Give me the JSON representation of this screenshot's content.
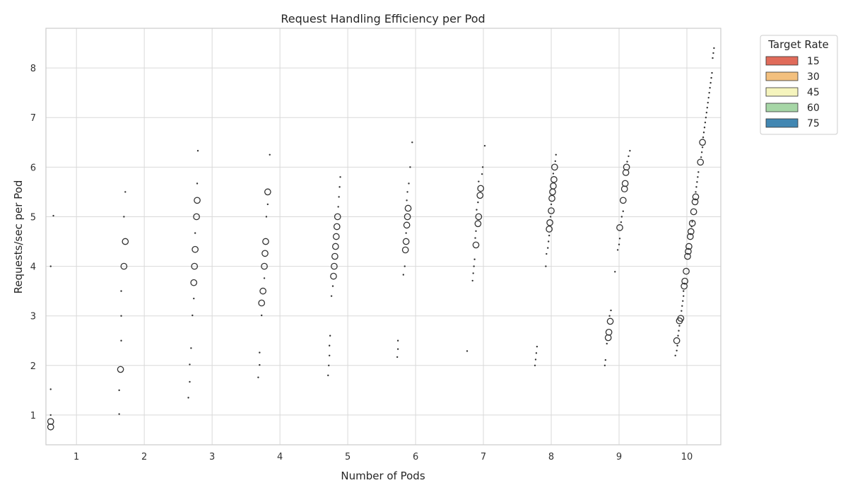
{
  "chart_data": {
    "type": "violin",
    "title": "Request Handling Efficiency per Pod",
    "xlabel": "Number of Pods",
    "ylabel": "Requests/sec per Pod",
    "x_ticks": [
      1,
      2,
      3,
      4,
      5,
      6,
      7,
      8,
      9,
      10
    ],
    "xlim": [
      0.55,
      10.5
    ],
    "y_ticks": [
      1,
      2,
      3,
      4,
      5,
      6,
      7,
      8
    ],
    "ylim": [
      0.4,
      8.8
    ],
    "grid": true,
    "legend": {
      "title": "Target Rate",
      "placement": "outside-top-right",
      "entries": [
        {
          "label": "15",
          "color": "#e06b5a"
        },
        {
          "label": "30",
          "color": "#f3c07e"
        },
        {
          "label": "45",
          "color": "#f5f4bd"
        },
        {
          "label": "60",
          "color": "#a6d6a6"
        },
        {
          "label": "75",
          "color": "#4287b2"
        }
      ]
    },
    "groups": [
      {
        "pods": 1,
        "dots": [
          [
            0.62,
            1.52
          ],
          [
            0.62,
            1.0
          ],
          [
            0.62,
            4.0
          ],
          [
            0.66,
            5.02
          ]
        ],
        "circles": [
          [
            0.62,
            0.87
          ],
          [
            0.62,
            0.76
          ]
        ]
      },
      {
        "pods": 2,
        "dots": [
          [
            1.63,
            1.5
          ],
          [
            1.63,
            1.02
          ],
          [
            1.66,
            2.5
          ],
          [
            1.66,
            3.0
          ],
          [
            1.66,
            3.5
          ],
          [
            1.7,
            5.0
          ],
          [
            1.72,
            5.5
          ]
        ],
        "circles": [
          [
            1.65,
            1.92
          ],
          [
            1.7,
            4.0
          ],
          [
            1.72,
            4.5
          ]
        ]
      },
      {
        "pods": 3,
        "dots": [
          [
            2.65,
            1.35
          ],
          [
            2.67,
            1.67
          ],
          [
            2.67,
            2.02
          ],
          [
            2.69,
            2.35
          ],
          [
            2.71,
            3.01
          ],
          [
            2.73,
            3.35
          ],
          [
            2.75,
            4.67
          ],
          [
            2.78,
            5.67
          ],
          [
            2.79,
            6.33
          ]
        ],
        "circles": [
          [
            2.73,
            3.67
          ],
          [
            2.74,
            4.0
          ],
          [
            2.75,
            4.34
          ],
          [
            2.77,
            5.0
          ],
          [
            2.78,
            5.33
          ]
        ]
      },
      {
        "pods": 4,
        "dots": [
          [
            3.68,
            1.76
          ],
          [
            3.7,
            2.01
          ],
          [
            3.7,
            2.26
          ],
          [
            3.73,
            3.01
          ],
          [
            3.77,
            3.76
          ],
          [
            3.8,
            5.0
          ],
          [
            3.82,
            5.25
          ],
          [
            3.85,
            6.25
          ]
        ],
        "circles": [
          [
            3.73,
            3.26
          ],
          [
            3.75,
            3.5
          ],
          [
            3.77,
            4.0
          ],
          [
            3.78,
            4.26
          ],
          [
            3.79,
            4.5
          ],
          [
            3.82,
            5.5
          ]
        ]
      },
      {
        "pods": 5,
        "dots": [
          [
            4.71,
            1.8
          ],
          [
            4.72,
            2.0
          ],
          [
            4.73,
            2.2
          ],
          [
            4.73,
            2.4
          ],
          [
            4.74,
            2.6
          ],
          [
            4.76,
            3.4
          ],
          [
            4.78,
            3.6
          ],
          [
            4.86,
            5.2
          ],
          [
            4.87,
            5.4
          ],
          [
            4.88,
            5.6
          ],
          [
            4.89,
            5.8
          ]
        ],
        "circles": [
          [
            4.79,
            3.8
          ],
          [
            4.8,
            4.0
          ],
          [
            4.81,
            4.2
          ],
          [
            4.82,
            4.4
          ],
          [
            4.83,
            4.6
          ],
          [
            4.84,
            4.8
          ],
          [
            4.85,
            5.0
          ]
        ]
      },
      {
        "pods": 6,
        "dots": [
          [
            5.73,
            2.17
          ],
          [
            5.74,
            2.33
          ],
          [
            5.74,
            2.5
          ],
          [
            5.82,
            3.83
          ],
          [
            5.84,
            4.0
          ],
          [
            5.86,
            4.67
          ],
          [
            5.87,
            5.33
          ],
          [
            5.88,
            5.5
          ],
          [
            5.9,
            5.67
          ],
          [
            5.92,
            6.0
          ],
          [
            5.95,
            6.5
          ]
        ],
        "circles": [
          [
            5.85,
            4.33
          ],
          [
            5.86,
            4.5
          ],
          [
            5.87,
            4.83
          ],
          [
            5.88,
            5.0
          ],
          [
            5.89,
            5.17
          ]
        ]
      },
      {
        "pods": 7,
        "dots": [
          [
            6.76,
            2.29
          ],
          [
            6.84,
            3.71
          ],
          [
            6.85,
            3.86
          ],
          [
            6.86,
            4.0
          ],
          [
            6.87,
            4.14
          ],
          [
            6.88,
            4.57
          ],
          [
            6.89,
            4.71
          ],
          [
            6.9,
            5.14
          ],
          [
            6.92,
            5.29
          ],
          [
            6.93,
            5.71
          ],
          [
            6.98,
            5.86
          ],
          [
            6.99,
            6.0
          ],
          [
            7.02,
            6.43
          ]
        ],
        "circles": [
          [
            6.89,
            4.43
          ],
          [
            6.92,
            4.86
          ],
          [
            6.93,
            5.0
          ],
          [
            6.95,
            5.43
          ],
          [
            6.96,
            5.57
          ]
        ]
      },
      {
        "pods": 8,
        "dots": [
          [
            7.76,
            2.0
          ],
          [
            7.77,
            2.12
          ],
          [
            7.78,
            2.25
          ],
          [
            7.79,
            2.38
          ],
          [
            7.92,
            4.0
          ],
          [
            7.93,
            4.25
          ],
          [
            7.95,
            4.37
          ],
          [
            7.96,
            4.5
          ],
          [
            7.97,
            4.62
          ],
          [
            7.99,
            5.0
          ],
          [
            8.0,
            5.25
          ],
          [
            8.03,
            5.87
          ],
          [
            8.06,
            6.12
          ],
          [
            8.07,
            6.25
          ]
        ],
        "circles": [
          [
            7.97,
            4.75
          ],
          [
            7.98,
            4.88
          ],
          [
            8.0,
            5.12
          ],
          [
            8.01,
            5.37
          ],
          [
            8.02,
            5.5
          ],
          [
            8.03,
            5.62
          ],
          [
            8.04,
            5.75
          ],
          [
            8.05,
            6.0
          ]
        ]
      },
      {
        "pods": 9,
        "dots": [
          [
            8.79,
            2.0
          ],
          [
            8.8,
            2.11
          ],
          [
            8.82,
            2.44
          ],
          [
            8.86,
            3.0
          ],
          [
            8.88,
            3.11
          ],
          [
            8.94,
            3.89
          ],
          [
            8.98,
            4.33
          ],
          [
            9.0,
            4.44
          ],
          [
            9.01,
            4.56
          ],
          [
            9.03,
            4.89
          ],
          [
            9.04,
            5.0
          ],
          [
            9.06,
            5.11
          ],
          [
            9.12,
            6.11
          ],
          [
            9.14,
            6.22
          ],
          [
            9.16,
            6.33
          ]
        ],
        "circles": [
          [
            8.84,
            2.56
          ],
          [
            8.85,
            2.67
          ],
          [
            8.87,
            2.89
          ],
          [
            9.01,
            4.78
          ],
          [
            9.06,
            5.33
          ],
          [
            9.08,
            5.56
          ],
          [
            9.09,
            5.67
          ],
          [
            9.1,
            5.89
          ],
          [
            9.11,
            6.0
          ]
        ]
      },
      {
        "pods": 10,
        "dots": [
          [
            9.83,
            2.2
          ],
          [
            9.85,
            2.3
          ],
          [
            9.86,
            2.4
          ],
          [
            9.87,
            2.6
          ],
          [
            9.88,
            2.7
          ],
          [
            9.89,
            2.8
          ],
          [
            9.92,
            3.1
          ],
          [
            9.93,
            3.2
          ],
          [
            9.94,
            3.3
          ],
          [
            9.95,
            3.4
          ],
          [
            9.95,
            3.5
          ],
          [
            10.07,
            4.8
          ],
          [
            10.08,
            4.9
          ],
          [
            10.13,
            5.5
          ],
          [
            10.14,
            5.6
          ],
          [
            10.15,
            5.7
          ],
          [
            10.16,
            5.8
          ],
          [
            10.17,
            5.9
          ],
          [
            10.21,
            6.2
          ],
          [
            10.22,
            6.3
          ],
          [
            10.23,
            6.4
          ],
          [
            10.24,
            6.6
          ],
          [
            10.25,
            6.7
          ],
          [
            10.26,
            6.8
          ],
          [
            10.27,
            6.9
          ],
          [
            10.28,
            7.0
          ],
          [
            10.29,
            7.1
          ],
          [
            10.3,
            7.2
          ],
          [
            10.31,
            7.3
          ],
          [
            10.32,
            7.4
          ],
          [
            10.33,
            7.5
          ],
          [
            10.34,
            7.6
          ],
          [
            10.35,
            7.7
          ],
          [
            10.36,
            7.8
          ],
          [
            10.37,
            7.9
          ],
          [
            10.38,
            8.2
          ],
          [
            10.39,
            8.3
          ],
          [
            10.4,
            8.4
          ]
        ],
        "circles": [
          [
            9.85,
            2.5
          ],
          [
            9.89,
            2.9
          ],
          [
            9.91,
            2.95
          ],
          [
            9.96,
            3.6
          ],
          [
            9.97,
            3.7
          ],
          [
            9.99,
            3.9
          ],
          [
            10.01,
            4.2
          ],
          [
            10.02,
            4.3
          ],
          [
            10.03,
            4.4
          ],
          [
            10.05,
            4.6
          ],
          [
            10.06,
            4.7
          ],
          [
            10.08,
            4.87
          ],
          [
            10.1,
            5.1
          ],
          [
            10.12,
            5.3
          ],
          [
            10.13,
            5.4
          ],
          [
            10.2,
            6.1
          ],
          [
            10.23,
            6.5
          ]
        ]
      }
    ]
  }
}
